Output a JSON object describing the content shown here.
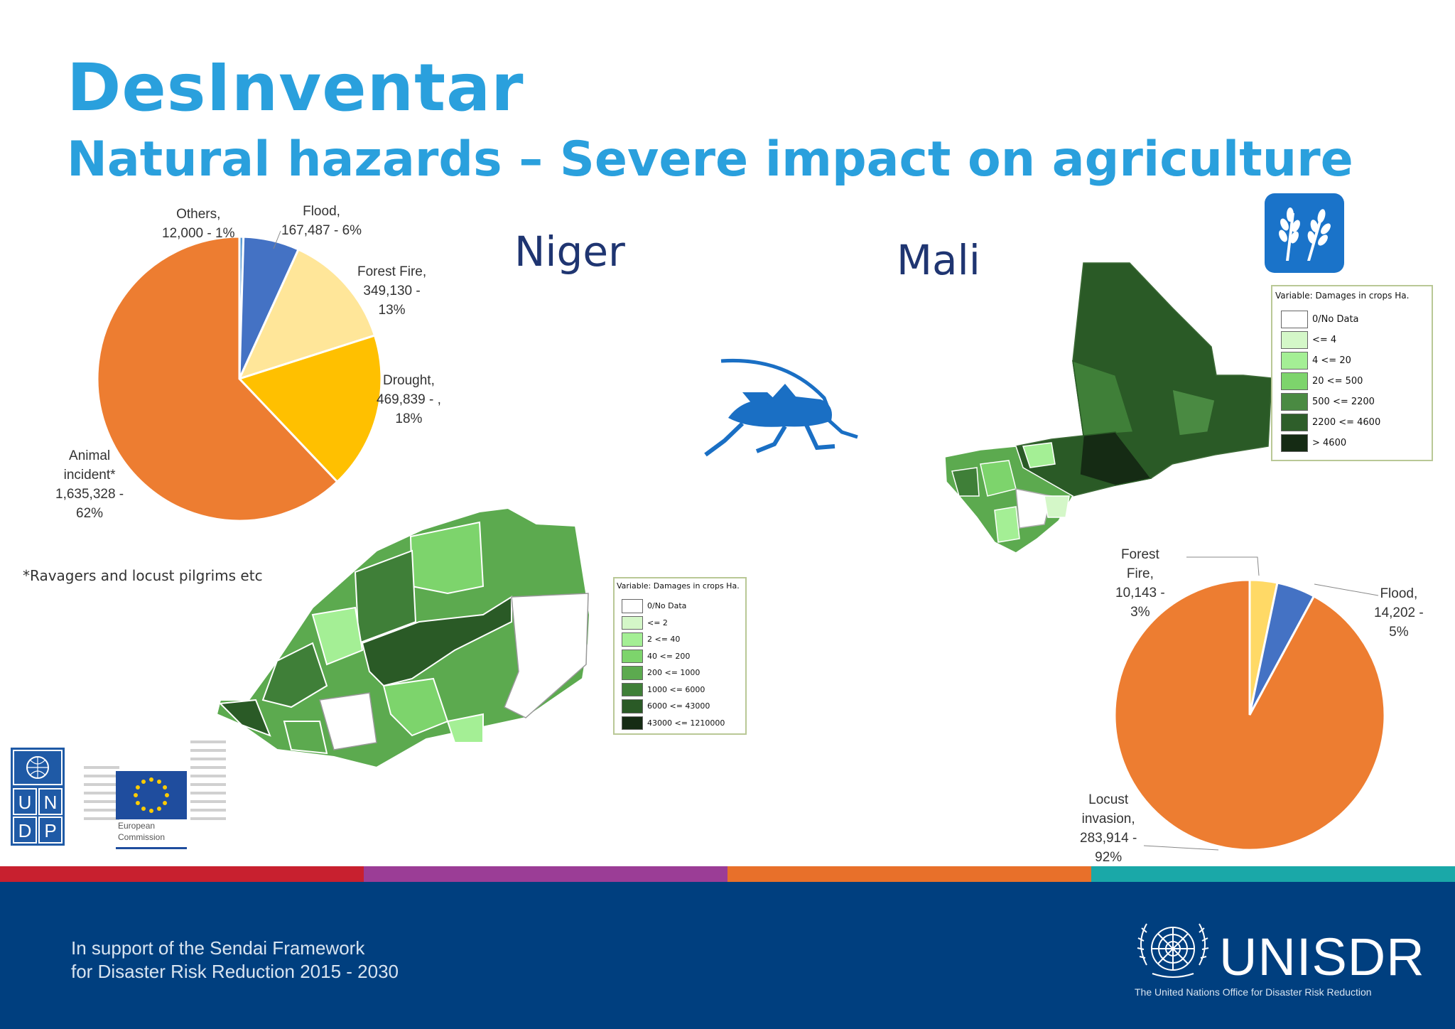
{
  "header": {
    "title": "DesInventar",
    "subtitle": "Natural hazards – Severe impact on agriculture"
  },
  "countries": {
    "niger": "Niger",
    "mali": "Mali"
  },
  "colors": {
    "title_blue": "#2aa0dd",
    "country_navy": "#1f3571",
    "orange": "#ed7d31",
    "blue": "#4472c4",
    "gold": "#ffc000",
    "pale_yellow": "#ffe699",
    "footer_blue": "#003f7f"
  },
  "niger_pie": {
    "labels": {
      "others": [
        "Others,",
        "12,000 - 1%"
      ],
      "flood": [
        "Flood,",
        "167,487 - 6%"
      ],
      "forest_fire": [
        "Forest Fire,",
        "349,130 -",
        "13%"
      ],
      "drought": [
        "Drought,",
        "469,839 - ,",
        "18%"
      ],
      "animal": [
        "Animal",
        "incident*",
        "1,635,328 -",
        "62%"
      ]
    },
    "footnote": "*Ravagers and locust pilgrims etc"
  },
  "mali_pie": {
    "labels": {
      "forest_fire": [
        "Forest",
        "Fire,",
        "10,143 -",
        "3%"
      ],
      "flood": [
        "Flood,",
        "14,202 -",
        "5%"
      ],
      "locust": [
        "Locust",
        "invasion,",
        "283,914 -",
        "92%"
      ]
    }
  },
  "chart_data": [
    {
      "type": "pie",
      "title": "Niger",
      "categories": [
        "Others",
        "Flood",
        "Forest Fire",
        "Drought",
        "Animal incident*"
      ],
      "values": [
        12000,
        167487,
        349130,
        469839,
        1635328
      ],
      "percents": [
        1,
        6,
        13,
        18,
        62
      ],
      "colors": [
        "#5b9bd5",
        "#4472c4",
        "#ffe699",
        "#ffc000",
        "#ed7d31"
      ]
    },
    {
      "type": "pie",
      "title": "Mali",
      "categories": [
        "Forest Fire",
        "Flood",
        "Locust invasion"
      ],
      "values": [
        10143,
        14202,
        283914
      ],
      "percents": [
        3,
        5,
        92
      ],
      "colors": [
        "#ffd966",
        "#4472c4",
        "#ed7d31"
      ]
    }
  ],
  "niger_legend": {
    "title": "Variable: Damages in crops Ha.",
    "items": [
      "0/No Data",
      "<= 2",
      "2 <= 40",
      "40 <= 200",
      "200 <= 1000",
      "1000 <= 6000",
      "6000 <= 43000",
      "43000 <= 1210000"
    ],
    "colors": [
      "#ffffff",
      "#d4f7c8",
      "#a4ef95",
      "#7dd46c",
      "#5caa4f",
      "#3f7f38",
      "#2a5a26",
      "#152b14"
    ]
  },
  "mali_legend": {
    "title": "Variable: Damages in crops Ha.",
    "items": [
      "0/No Data",
      "<= 4",
      "4 <= 20",
      "20 <= 500",
      "500 <= 2200",
      "2200 <= 4600",
      "> 4600"
    ],
    "colors": [
      "#ffffff",
      "#d4f7c8",
      "#a4ef95",
      "#7dd46c",
      "#4a8a42",
      "#2e5e2a",
      "#152b14"
    ]
  },
  "logos": {
    "undp": [
      "U",
      "N",
      "D",
      "P"
    ],
    "eu": [
      "European",
      "Commission"
    ],
    "unisdr": "UNISDR",
    "unisdr_tagline": "The United Nations Office for Disaster Risk Reduction"
  },
  "footer": {
    "line1": "In support of the Sendai Framework",
    "line2": "for Disaster Risk Reduction 2015 - 2030"
  },
  "stripe_colors": [
    "#c8202f",
    "#9b3d96",
    "#e8702a",
    "#1aa8a8"
  ]
}
